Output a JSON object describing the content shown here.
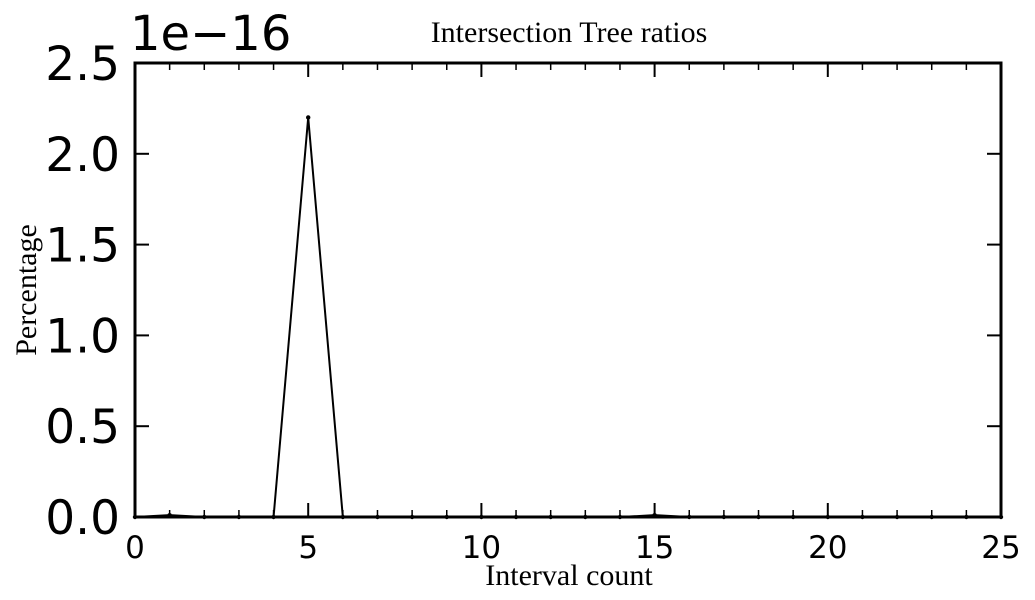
{
  "chart_data": {
    "type": "line",
    "title": "Intersection Tree ratios",
    "xlabel": "Interval count",
    "ylabel": "Percentage",
    "offset_text": "1e−16",
    "xlim": [
      0,
      25
    ],
    "ylim": [
      0,
      2.5
    ],
    "x_ticks": [
      0,
      5,
      10,
      15,
      20,
      25
    ],
    "x_tick_labels": [
      "0",
      "5",
      "10",
      "15",
      "20",
      "25"
    ],
    "y_ticks": [
      0,
      0.5,
      1.0,
      1.5,
      2.0,
      2.5
    ],
    "y_tick_labels": [
      "0.0",
      "0.5",
      "1.0",
      "1.5",
      "2.0",
      "2.5"
    ],
    "grid": false,
    "line_color": "#000000",
    "series": [
      {
        "x": [
          0,
          1,
          2,
          3,
          4,
          5,
          6,
          7,
          8,
          9,
          10,
          11,
          12,
          13,
          14,
          15,
          16,
          17,
          18,
          19,
          20,
          21,
          22,
          23,
          24,
          25
        ],
        "values": [
          0,
          0.01,
          0,
          0,
          0,
          2.2,
          0,
          0,
          0,
          0,
          0,
          0,
          0,
          0,
          0,
          0.01,
          0,
          0,
          0,
          0,
          0,
          0,
          0,
          0,
          0,
          0
        ]
      }
    ]
  }
}
